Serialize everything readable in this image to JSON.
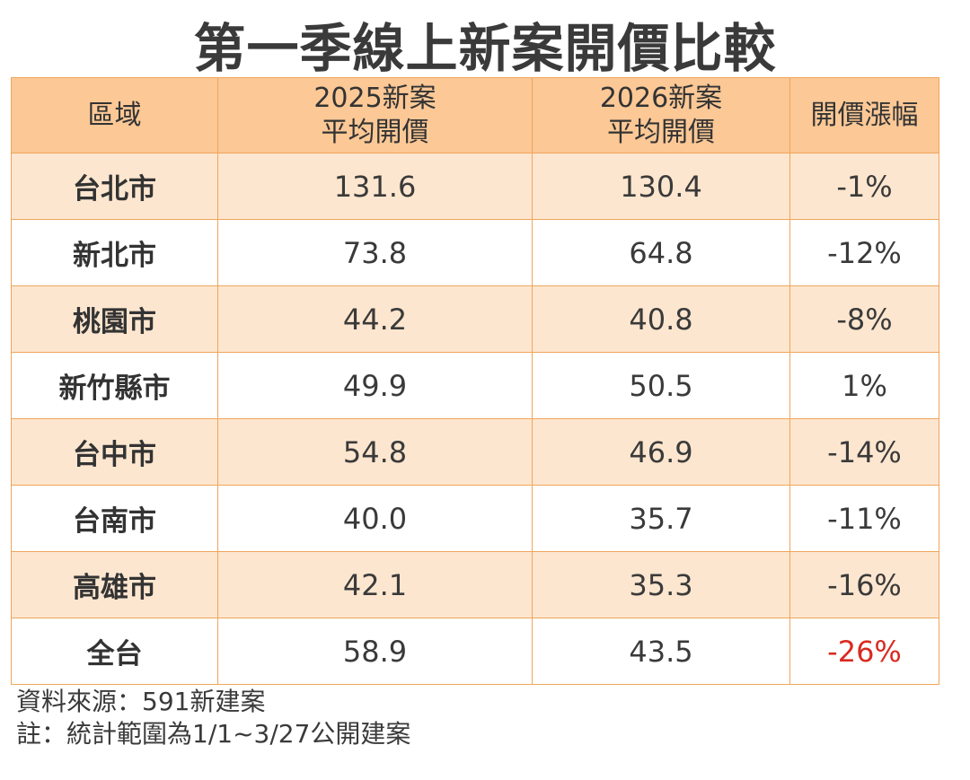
{
  "title": "第一季線上新案開價比較",
  "chart_data": {
    "type": "table",
    "columns": [
      {
        "line1": "區域",
        "line2": ""
      },
      {
        "line1": "2025新案",
        "line2": "平均開價"
      },
      {
        "line1": "2026新案",
        "line2": "平均開價"
      },
      {
        "line1": "開價漲幅",
        "line2": ""
      }
    ],
    "rows": [
      {
        "region": "台北市",
        "price_2025": "131.6",
        "price_2026": "130.4",
        "change": "-1%"
      },
      {
        "region": "新北市",
        "price_2025": "73.8",
        "price_2026": "64.8",
        "change": "-12%"
      },
      {
        "region": "桃園市",
        "price_2025": "44.2",
        "price_2026": "40.8",
        "change": "-8%"
      },
      {
        "region": "新竹縣市",
        "price_2025": "49.9",
        "price_2026": "50.5",
        "change": "1%"
      },
      {
        "region": "台中市",
        "price_2025": "54.8",
        "price_2026": "46.9",
        "change": "-14%"
      },
      {
        "region": "台南市",
        "price_2025": "40.0",
        "price_2026": "35.7",
        "change": "-11%"
      },
      {
        "region": "高雄市",
        "price_2025": "42.1",
        "price_2026": "35.3",
        "change": "-16%"
      },
      {
        "region": "全台",
        "price_2025": "58.9",
        "price_2026": "43.5",
        "change": "-26%"
      }
    ]
  },
  "notes": {
    "source": "資料來源：591新建案",
    "remark": "註：統計範圍為1/1~3/27公開建案"
  },
  "colors": {
    "header_bg": "#fbc896",
    "shaded_row_bg": "#fde6cf",
    "border": "#f0a55a",
    "highlight_red": "#d92a20"
  }
}
